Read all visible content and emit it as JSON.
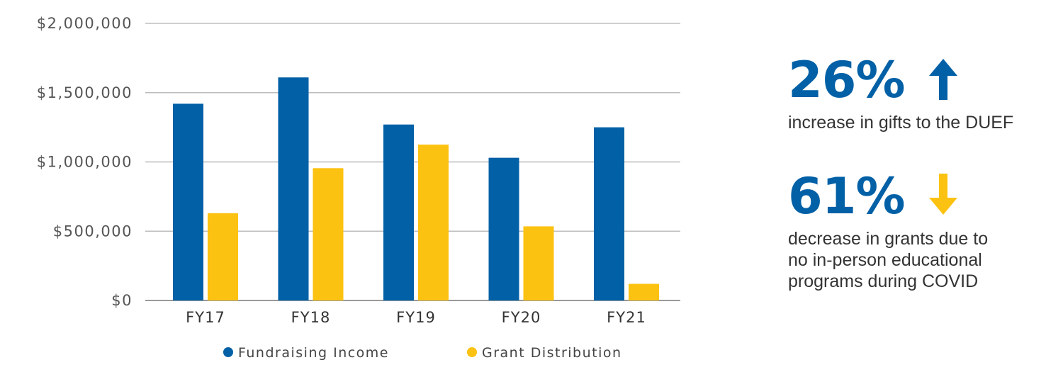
{
  "chart_data": {
    "type": "bar",
    "categories": [
      "FY17",
      "FY18",
      "FY19",
      "FY20",
      "FY21"
    ],
    "series": [
      {
        "name": "Fundraising Income",
        "color": "#0160a6",
        "values": [
          1420000,
          1610000,
          1270000,
          1030000,
          1250000
        ]
      },
      {
        "name": "Grant Distribution",
        "color": "#fcc211",
        "values": [
          630000,
          955000,
          1125000,
          535000,
          120000
        ]
      }
    ],
    "ylim": [
      0,
      2000000
    ],
    "y_ticks": [
      0,
      500000,
      1000000,
      1500000,
      2000000
    ],
    "y_tick_labels": [
      "$0",
      "$500,000",
      "$1,000,000",
      "$1,500,000",
      "$2,000,000"
    ],
    "grid": "horizontal",
    "legend_position": "bottom",
    "title": "",
    "xlabel": "",
    "ylabel": ""
  },
  "stats": [
    {
      "value": "26%",
      "direction": "up",
      "color": "#0160a6",
      "arrow_color": "#0160a6",
      "caption_lines": [
        "increase in gifts to the DUEF"
      ]
    },
    {
      "value": "61%",
      "direction": "down",
      "color": "#0160a6",
      "arrow_color": "#fcc211",
      "caption_lines": [
        "decrease in grants due to",
        "no in-person educational",
        "programs during COVID"
      ]
    }
  ]
}
